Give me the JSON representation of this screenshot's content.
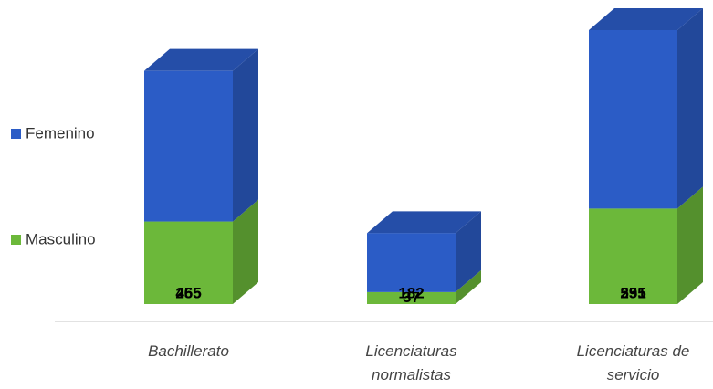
{
  "chart_data": {
    "type": "stacked-bar-3d",
    "categories": [
      "Bachillerato",
      "Licenciaturas normalistas",
      "Licenciaturas de servicio"
    ],
    "series": [
      {
        "name": "Masculino",
        "color": "#6cb83a",
        "values": [
          255,
          37,
          295
        ]
      },
      {
        "name": "Femenino",
        "color": "#2b5cc6",
        "values": [
          465,
          182,
          551
        ]
      }
    ],
    "legend": "left"
  }
}
